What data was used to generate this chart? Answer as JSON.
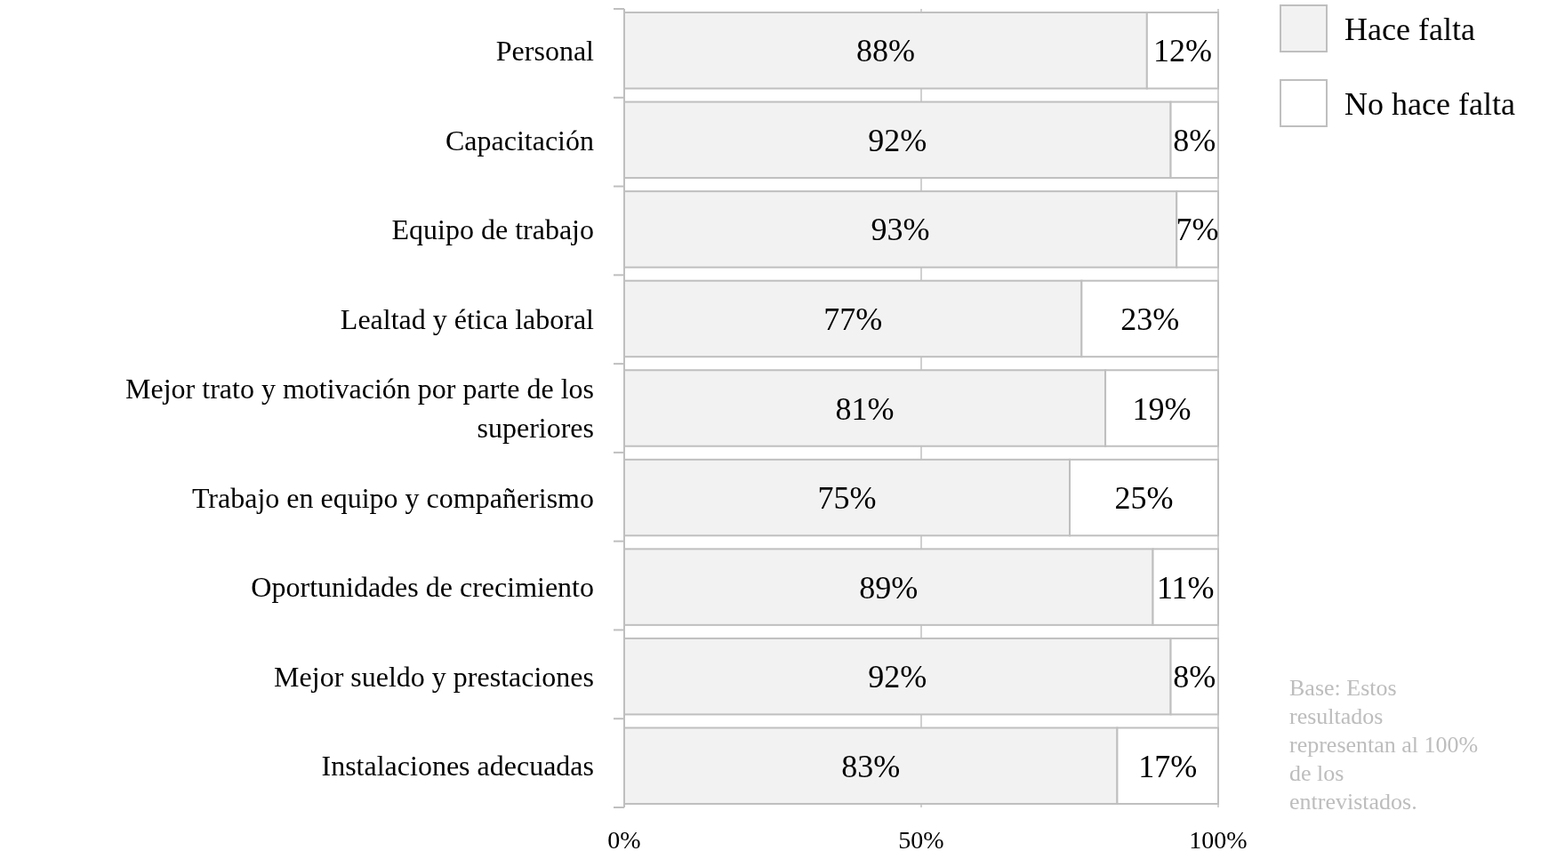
{
  "chart_data": {
    "type": "bar",
    "orientation": "horizontal",
    "stacked": true,
    "categories": [
      "Personal",
      "Capacitación",
      "Equipo de trabajo",
      "Lealtad y ética laboral",
      "Mejor trato y motivación por parte de los superiores",
      "Trabajo en equipo y compañerismo",
      "Oportunidades de crecimiento",
      "Mejor sueldo y prestaciones",
      "Instalaciones adecuadas"
    ],
    "series": [
      {
        "name": "Hace falta",
        "color": "#f2f2f2",
        "values": [
          88,
          92,
          93,
          77,
          81,
          75,
          89,
          92,
          83
        ],
        "value_labels": [
          "88%",
          "92%",
          "93%",
          "77%",
          "81%",
          "75%",
          "89%",
          "92%",
          "83%"
        ]
      },
      {
        "name": "No hace falta",
        "color": "#ffffff",
        "values": [
          12,
          8,
          7,
          23,
          19,
          25,
          11,
          8,
          17
        ],
        "value_labels": [
          "12%",
          "8%",
          "7%",
          "23%",
          "19%",
          "25%",
          "11%",
          "8%",
          "17%"
        ]
      }
    ],
    "xlim": [
      0,
      100
    ],
    "xticks": [
      {
        "value": 0,
        "label": "0%"
      },
      {
        "value": 50,
        "label": "50%"
      },
      {
        "value": 100,
        "label": "100%"
      }
    ],
    "grid": "x",
    "legend": "top right",
    "annotations": [
      "Base: Estos resultados representan al 100% de los entrevistados."
    ]
  }
}
